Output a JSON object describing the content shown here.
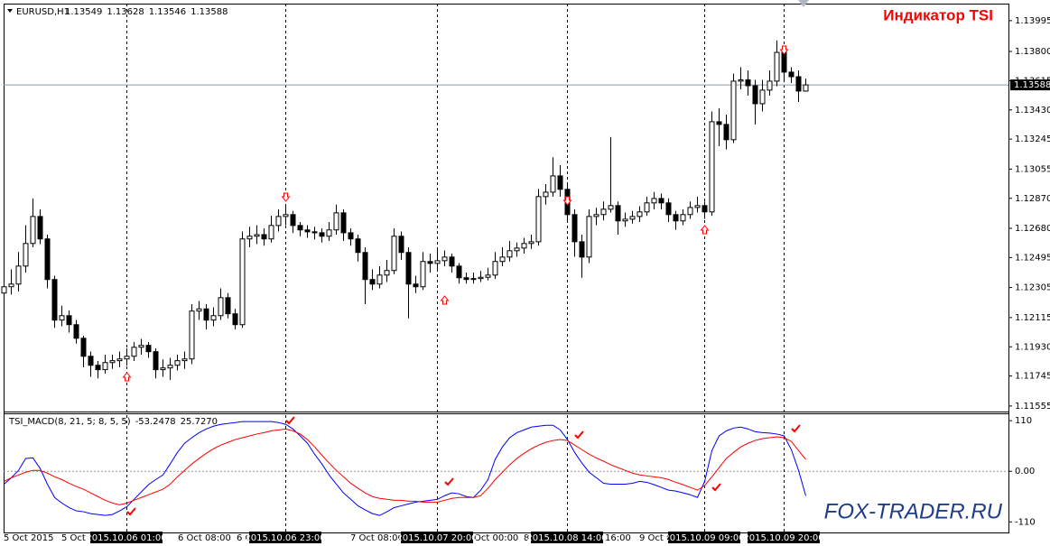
{
  "chart_data": {
    "type": "candlestick",
    "symbol": "EURUSD,H1",
    "title": "Индикатор TSI",
    "watermark": "FOX-TRADER.RU",
    "ylim": [
      1.1152,
      1.1408
    ],
    "yticks": [
      1.13995,
      {
        "value": 1.138,
        "label": "1.13800"
      },
      1.13615,
      {
        "value": 1.1343,
        "label": "1.13430"
      },
      1.13245,
      1.13055,
      {
        "value": 1.1287,
        "label": "1.12870"
      },
      {
        "value": 1.1268,
        "label": "1.12680"
      },
      1.12495,
      1.12305,
      1.12115,
      {
        "value": 1.1193,
        "label": "1.11930"
      },
      1.11745,
      1.11555
    ],
    "grid": false,
    "up_color": "#ffffff",
    "down_color": "#000000",
    "price_line_color": "#8c9aa8",
    "x_labels": [
      "5 Oct 2015",
      "5 Oct 1",
      "6 Oct 08:00",
      "6 O",
      "7 Oct 08:00",
      "Oct 00:00",
      "8",
      "16:00",
      "9 Oct 0"
    ],
    "cursor_labels": [
      "2015.10.06 01:00",
      "2015.10.06 23:00",
      "2015.10.07 20:00",
      "2015.10.08 14:00",
      "2015.10.09 09:00",
      "2015.10.09 20:00"
    ],
    "candles": [
      [
        1.1227,
        1.1239,
        1.1221,
        1.1231
      ],
      [
        1.1231,
        1.1242,
        1.1226,
        1.12327
      ],
      [
        1.12327,
        1.1253,
        1.1228,
        1.12441
      ],
      [
        1.12441,
        1.127,
        1.124,
        1.12584
      ],
      [
        1.12584,
        1.12869,
        1.1256,
        1.12755
      ],
      [
        1.12755,
        1.128,
        1.1258,
        1.12613
      ],
      [
        1.12613,
        1.1264,
        1.123,
        1.12356
      ],
      [
        1.12356,
        1.1238,
        1.1205,
        1.12099
      ],
      [
        1.12099,
        1.1219,
        1.1206,
        1.12127
      ],
      [
        1.12127,
        1.1216,
        1.1202,
        1.1207
      ],
      [
        1.1207,
        1.121,
        1.1195,
        1.11984
      ],
      [
        1.11984,
        1.12,
        1.118,
        1.1187
      ],
      [
        1.1187,
        1.119,
        1.1174,
        1.11813
      ],
      [
        1.11813,
        1.1184,
        1.1173,
        1.11785
      ],
      [
        1.11785,
        1.1188,
        1.1176,
        1.1183
      ],
      [
        1.1183,
        1.1188,
        1.1179,
        1.11842
      ],
      [
        1.11842,
        1.119,
        1.118,
        1.11853
      ],
      [
        1.11853,
        1.1192,
        1.1181,
        1.1187
      ],
      [
        1.1187,
        1.1196,
        1.1184,
        1.11927
      ],
      [
        1.11927,
        1.1198,
        1.1188,
        1.11939
      ],
      [
        1.11939,
        1.1196,
        1.1186,
        1.11899
      ],
      [
        1.11899,
        1.1192,
        1.1173,
        1.11785
      ],
      [
        1.11785,
        1.1185,
        1.1174,
        1.11796
      ],
      [
        1.11796,
        1.1186,
        1.1172,
        1.11813
      ],
      [
        1.11813,
        1.1188,
        1.1178,
        1.11842
      ],
      [
        1.11842,
        1.119,
        1.1179,
        1.11853
      ],
      [
        1.11853,
        1.122,
        1.1182,
        1.12156
      ],
      [
        1.12156,
        1.1222,
        1.121,
        1.1217
      ],
      [
        1.1217,
        1.122,
        1.1204,
        1.12099
      ],
      [
        1.12099,
        1.1218,
        1.1206,
        1.12127
      ],
      [
        1.12127,
        1.123,
        1.121,
        1.12241
      ],
      [
        1.12241,
        1.1227,
        1.1211,
        1.12139
      ],
      [
        1.12139,
        1.1217,
        1.1204,
        1.1207
      ],
      [
        1.1207,
        1.1266,
        1.1205,
        1.12613
      ],
      [
        1.12613,
        1.1269,
        1.1256,
        1.1263
      ],
      [
        1.1263,
        1.127,
        1.1258,
        1.1264
      ],
      [
        1.1264,
        1.1268,
        1.1257,
        1.12613
      ],
      [
        1.12613,
        1.1276,
        1.1259,
        1.12698
      ],
      [
        1.12698,
        1.128,
        1.1266,
        1.12755
      ],
      [
        1.12755,
        1.1282,
        1.127,
        1.12767
      ],
      [
        1.12767,
        1.1279,
        1.1265,
        1.12698
      ],
      [
        1.12698,
        1.1272,
        1.1263,
        1.1267
      ],
      [
        1.1267,
        1.127,
        1.1262,
        1.12658
      ],
      [
        1.12658,
        1.1269,
        1.1261,
        1.12652
      ],
      [
        1.12652,
        1.1268,
        1.1259,
        1.1263
      ],
      [
        1.1263,
        1.1272,
        1.126,
        1.1267
      ],
      [
        1.1267,
        1.1283,
        1.1264,
        1.12778
      ],
      [
        1.12778,
        1.128,
        1.126,
        1.12652
      ],
      [
        1.12652,
        1.1268,
        1.1257,
        1.12613
      ],
      [
        1.12613,
        1.1264,
        1.1247,
        1.12527
      ],
      [
        1.12527,
        1.1256,
        1.122,
        1.12356
      ],
      [
        1.12356,
        1.1242,
        1.1229,
        1.12327
      ],
      [
        1.12327,
        1.1244,
        1.123,
        1.12384
      ],
      [
        1.12384,
        1.1248,
        1.1234,
        1.12413
      ],
      [
        1.12413,
        1.1268,
        1.1239,
        1.1263
      ],
      [
        1.1263,
        1.1266,
        1.1248,
        1.12527
      ],
      [
        1.12527,
        1.1256,
        1.1211,
        1.12327
      ],
      [
        1.12327,
        1.1238,
        1.1227,
        1.1231
      ],
      [
        1.1231,
        1.1253,
        1.1229,
        1.1247
      ],
      [
        1.1247,
        1.1252,
        1.124,
        1.12458
      ],
      [
        1.12458,
        1.1255,
        1.1242,
        1.12475
      ],
      [
        1.12475,
        1.1254,
        1.1244,
        1.12498
      ],
      [
        1.12498,
        1.1252,
        1.124,
        1.12441
      ],
      [
        1.12441,
        1.1246,
        1.1233,
        1.12367
      ],
      [
        1.12367,
        1.124,
        1.1233,
        1.12356
      ],
      [
        1.12356,
        1.124,
        1.1233,
        1.12362
      ],
      [
        1.12362,
        1.1241,
        1.1234,
        1.1237
      ],
      [
        1.1237,
        1.1243,
        1.1235,
        1.12384
      ],
      [
        1.12384,
        1.1253,
        1.1236,
        1.1247
      ],
      [
        1.1247,
        1.1256,
        1.1244,
        1.12498
      ],
      [
        1.12498,
        1.126,
        1.1247,
        1.12538
      ],
      [
        1.12538,
        1.1259,
        1.125,
        1.12555
      ],
      [
        1.12555,
        1.1262,
        1.1252,
        1.12584
      ],
      [
        1.12584,
        1.1264,
        1.1255,
        1.12595
      ],
      [
        1.12595,
        1.1293,
        1.1257,
        1.12881
      ],
      [
        1.12881,
        1.1296,
        1.1283,
        1.12909
      ],
      [
        1.12909,
        1.1313,
        1.1288,
        1.13012
      ],
      [
        1.13012,
        1.1308,
        1.1288,
        1.12927
      ],
      [
        1.12927,
        1.1296,
        1.1272,
        1.12767
      ],
      [
        1.12767,
        1.128,
        1.125,
        1.12595
      ],
      [
        1.12595,
        1.1264,
        1.12367,
        1.12498
      ],
      [
        1.12498,
        1.128,
        1.1246,
        1.12755
      ],
      [
        1.12755,
        1.1281,
        1.127,
        1.12767
      ],
      [
        1.12767,
        1.1285,
        1.1273,
        1.12801
      ],
      [
        1.12801,
        1.13258,
        1.1278,
        1.12824
      ],
      [
        1.12824,
        1.1285,
        1.1264,
        1.12727
      ],
      [
        1.12727,
        1.1278,
        1.1269,
        1.12738
      ],
      [
        1.12738,
        1.1279,
        1.1271,
        1.12755
      ],
      [
        1.12755,
        1.1282,
        1.1272,
        1.12784
      ],
      [
        1.12784,
        1.1288,
        1.1276,
        1.12841
      ],
      [
        1.12841,
        1.1291,
        1.128,
        1.12869
      ],
      [
        1.12869,
        1.129,
        1.128,
        1.12841
      ],
      [
        1.12841,
        1.1287,
        1.1272,
        1.12767
      ],
      [
        1.12767,
        1.1279,
        1.1267,
        1.12727
      ],
      [
        1.12727,
        1.128,
        1.127,
        1.12767
      ],
      [
        1.12767,
        1.1285,
        1.1274,
        1.12812
      ],
      [
        1.12812,
        1.1288,
        1.1278,
        1.12824
      ],
      [
        1.12824,
        1.1285,
        1.1274,
        1.12784
      ],
      [
        1.12784,
        1.1342,
        1.1276,
        1.13355
      ],
      [
        1.13355,
        1.1344,
        1.132,
        1.13338
      ],
      [
        1.13338,
        1.134,
        1.1318,
        1.13241
      ],
      [
        1.13241,
        1.1366,
        1.1322,
        1.13612
      ],
      [
        1.13612,
        1.137,
        1.1356,
        1.1362
      ],
      [
        1.1362,
        1.1368,
        1.1352,
        1.13583
      ],
      [
        1.13583,
        1.1362,
        1.13338,
        1.13469
      ],
      [
        1.13469,
        1.1362,
        1.1342,
        1.13555
      ],
      [
        1.13555,
        1.1368,
        1.1352,
        1.13612
      ],
      [
        1.13612,
        1.13869,
        1.1358,
        1.13794
      ],
      [
        1.13794,
        1.1382,
        1.1362,
        1.13669
      ],
      [
        1.13669,
        1.137,
        1.136,
        1.1364
      ],
      [
        1.1364,
        1.1368,
        1.1348,
        1.13549
      ],
      [
        1.13549,
        1.13628,
        1.13546,
        1.13588
      ]
    ],
    "indicator": {
      "name": "TSI_MACD(8, 21, 5; 8, 5, 5)",
      "ylim": [
        -133,
        126
      ],
      "yticks": [
        110,
        {
          "value": 0,
          "label": "0.00"
        },
        -110
      ],
      "series": [
        {
          "color": "#0000ff",
          "values": [
            -28,
            -14,
            2,
            28,
            29,
            6,
            -28,
            -57,
            -69,
            -79,
            -86,
            -88,
            -92,
            -94,
            -96,
            -94,
            -86,
            -77,
            -61,
            -45,
            -29,
            -18,
            -8,
            16,
            41,
            61,
            73,
            84,
            92,
            98,
            102,
            104,
            106,
            108,
            108,
            108,
            108,
            108,
            106,
            102,
            92,
            77,
            61,
            37,
            16,
            -8,
            -28,
            -47,
            -61,
            -75,
            -84,
            -92,
            -96,
            -88,
            -79,
            -75,
            -71,
            -67,
            -65,
            -63,
            -61,
            -53,
            -47,
            -49,
            -55,
            -57,
            -41,
            -18,
            26,
            53,
            73,
            84,
            90,
            96,
            98,
            100,
            100,
            90,
            69,
            41,
            18,
            -2,
            -14,
            -26,
            -28,
            -28,
            -28,
            -26,
            -22,
            -24,
            -29,
            -35,
            -41,
            -43,
            -47,
            -51,
            -57,
            -22,
            45,
            77,
            88,
            94,
            96,
            92,
            86,
            84,
            83,
            81,
            77,
            47,
            2,
            -53.2478
          ]
        },
        {
          "color": "#ff0000",
          "last_value_label": "25.7270",
          "values": [
            -22,
            -14,
            -8,
            -2,
            2,
            2,
            -4,
            -12,
            -18,
            -26,
            -33,
            -39,
            -47,
            -55,
            -63,
            -69,
            -73,
            -69,
            -63,
            -57,
            -51,
            -45,
            -39,
            -28,
            -12,
            2,
            16,
            28,
            39,
            49,
            57,
            63,
            69,
            73,
            77,
            81,
            84,
            88,
            90,
            92,
            88,
            81,
            69,
            53,
            35,
            18,
            2,
            -12,
            -26,
            -37,
            -47,
            -55,
            -59,
            -61,
            -63,
            -63,
            -65,
            -65,
            -67,
            -67,
            -67,
            -63,
            -59,
            -57,
            -57,
            -57,
            -53,
            -37,
            -18,
            -2,
            14,
            28,
            39,
            49,
            57,
            63,
            67,
            69,
            67,
            57,
            47,
            37,
            29,
            22,
            14,
            8,
            2,
            -4,
            -8,
            -10,
            -12,
            -14,
            -18,
            -24,
            -29,
            -35,
            -41,
            -31,
            -12,
            8,
            28,
            41,
            53,
            61,
            67,
            71,
            73,
            75,
            73,
            65,
            45,
            25.727
          ]
        }
      ]
    }
  }
}
